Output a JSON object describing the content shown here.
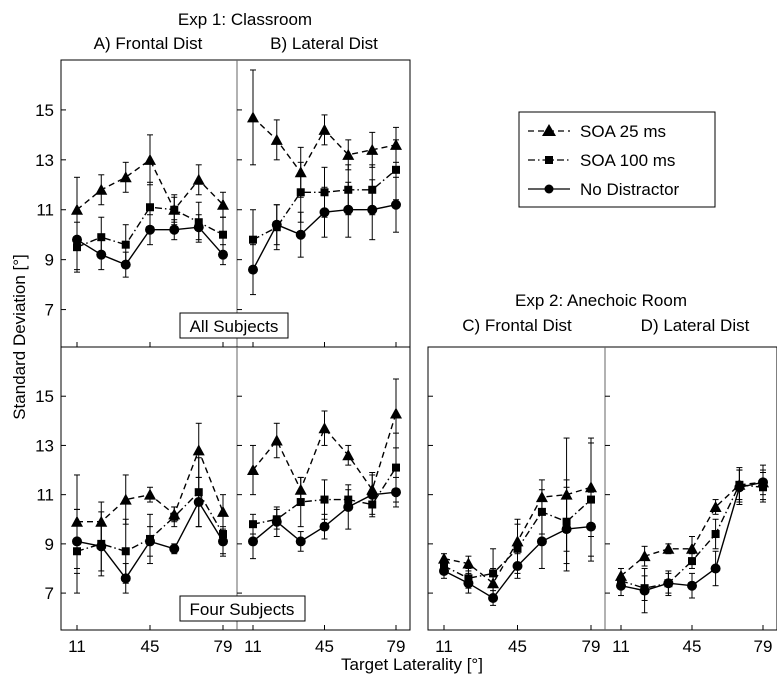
{
  "figure": {
    "exp1_title": "Exp 1: Classroom",
    "exp2_title": "Exp 2: Anechoic Room",
    "ylabel": "Standard Deviation [°]",
    "xlabel": "Target Laterality [°]",
    "panel_titles": [
      "A) Frontal Dist",
      "B) Lateral Dist",
      "C) Frontal Dist",
      "D) Lateral Dist"
    ],
    "row_labels": [
      "All Subjects",
      "Four Subjects"
    ]
  },
  "legend": {
    "placement": "right, beside top row",
    "entries": [
      {
        "label": "SOA 25 ms",
        "marker": "triangle",
        "line": "dashed"
      },
      {
        "label": "SOA 100 ms",
        "marker": "square",
        "line": "dash-dot"
      },
      {
        "label": "No Distractor",
        "marker": "circle",
        "line": "solid"
      }
    ]
  },
  "chart_data": [
    {
      "type": "line",
      "panel": "A) Frontal Dist",
      "group": "Exp 1: Classroom",
      "row": "All Subjects",
      "xticks": [
        11,
        45,
        79
      ],
      "yticks": [
        7,
        9,
        11,
        13,
        15
      ],
      "ylim": [
        5.5,
        17
      ],
      "x": [
        11,
        22.3,
        33.7,
        45,
        56.3,
        67.7,
        79
      ],
      "series": [
        {
          "name": "SOA 25 ms",
          "values": [
            11.0,
            11.8,
            12.3,
            13.0,
            11.0,
            12.2,
            11.2
          ],
          "errors": [
            1.3,
            0.6,
            0.6,
            1.0,
            0.5,
            0.6,
            0.5
          ]
        },
        {
          "name": "SOA 100 ms",
          "values": [
            9.5,
            9.9,
            9.6,
            11.1,
            11.0,
            10.5,
            10.0
          ],
          "errors": [
            1.0,
            0.8,
            0.8,
            1.0,
            0.6,
            0.8,
            0.7
          ]
        },
        {
          "name": "No Distractor",
          "values": [
            9.8,
            9.2,
            8.8,
            10.2,
            10.2,
            10.3,
            9.2
          ],
          "errors": [
            1.2,
            0.6,
            0.5,
            0.6,
            0.4,
            0.5,
            0.4
          ]
        }
      ]
    },
    {
      "type": "line",
      "panel": "B) Lateral Dist",
      "group": "Exp 1: Classroom",
      "row": "All Subjects",
      "xticks": [
        11,
        45,
        79
      ],
      "yticks": [
        7,
        9,
        11,
        13,
        15
      ],
      "ylim": [
        5.5,
        17
      ],
      "x": [
        11,
        22.3,
        33.7,
        45,
        56.3,
        67.7,
        79
      ],
      "series": [
        {
          "name": "SOA 25 ms",
          "values": [
            14.7,
            13.8,
            12.5,
            14.2,
            13.2,
            13.4,
            13.6
          ],
          "errors": [
            1.9,
            0.8,
            1.0,
            0.6,
            0.6,
            0.7,
            0.7
          ]
        },
        {
          "name": "SOA 100 ms",
          "values": [
            9.8,
            10.3,
            11.7,
            11.7,
            11.8,
            11.8,
            12.6
          ],
          "errors": [
            1.2,
            0.9,
            1.2,
            1.0,
            1.0,
            1.0,
            1.2
          ]
        },
        {
          "name": "No Distractor",
          "values": [
            8.6,
            10.4,
            10.0,
            10.9,
            11.0,
            11.0,
            11.2
          ],
          "errors": [
            1.0,
            0.8,
            0.9,
            1.0,
            1.1,
            1.2,
            1.1
          ]
        }
      ]
    },
    {
      "type": "line",
      "panel": "A) Frontal Dist",
      "group": "Exp 1: Classroom",
      "row": "Four Subjects",
      "xticks": [
        11,
        45,
        79
      ],
      "yticks": [
        7,
        9,
        11,
        13,
        15
      ],
      "ylim": [
        5.5,
        17
      ],
      "x": [
        11,
        22.3,
        33.7,
        45,
        56.3,
        67.7,
        79
      ],
      "series": [
        {
          "name": "SOA 25 ms",
          "values": [
            9.9,
            9.9,
            10.8,
            11.0,
            10.2,
            12.8,
            10.3
          ],
          "errors": [
            1.9,
            0.8,
            1.0,
            0.3,
            0.3,
            1.1,
            0.7
          ]
        },
        {
          "name": "SOA 100 ms",
          "values": [
            8.7,
            9.0,
            8.7,
            9.2,
            10.1,
            11.1,
            9.4
          ],
          "errors": [
            1.7,
            1.3,
            1.3,
            1.0,
            0.4,
            1.4,
            0.8
          ]
        },
        {
          "name": "No Distractor",
          "values": [
            9.1,
            8.9,
            7.6,
            9.1,
            8.8,
            10.7,
            9.1
          ],
          "errors": [
            1.3,
            1.0,
            0.6,
            0.6,
            0.2,
            1.0,
            0.6
          ]
        }
      ]
    },
    {
      "type": "line",
      "panel": "B) Lateral Dist",
      "group": "Exp 1: Classroom",
      "row": "Four Subjects",
      "xticks": [
        11,
        45,
        79
      ],
      "yticks": [
        7,
        9,
        11,
        13,
        15
      ],
      "ylim": [
        5.5,
        17
      ],
      "x": [
        11,
        22.3,
        33.7,
        45,
        56.3,
        67.7,
        79
      ],
      "series": [
        {
          "name": "SOA 25 ms",
          "values": [
            12.0,
            13.2,
            11.2,
            13.7,
            12.6,
            11.2,
            14.3
          ],
          "errors": [
            1.0,
            0.7,
            0.5,
            0.7,
            0.4,
            0.7,
            1.4
          ]
        },
        {
          "name": "SOA 100 ms",
          "values": [
            9.8,
            10.0,
            10.7,
            10.8,
            10.8,
            10.6,
            12.1
          ],
          "errors": [
            0.4,
            0.4,
            1.0,
            0.8,
            0.4,
            0.5,
            1.4
          ]
        },
        {
          "name": "No Distractor",
          "values": [
            9.1,
            9.9,
            9.1,
            9.7,
            10.5,
            11.0,
            11.1
          ],
          "errors": [
            0.7,
            0.6,
            0.4,
            0.5,
            0.9,
            0.8,
            0.6
          ]
        }
      ]
    },
    {
      "type": "line",
      "panel": "C) Frontal Dist",
      "group": "Exp 2: Anechoic Room",
      "row": "Four Subjects",
      "xticks": [
        11,
        45,
        79
      ],
      "yticks": [
        7,
        9,
        11,
        13,
        15
      ],
      "ylim": [
        5.5,
        17
      ],
      "x": [
        11,
        22.3,
        33.7,
        45,
        56.3,
        67.7,
        79
      ],
      "series": [
        {
          "name": "SOA 25 ms",
          "values": [
            8.4,
            8.2,
            7.4,
            9.1,
            10.9,
            11.0,
            11.3
          ],
          "errors": [
            0.2,
            0.3,
            0.6,
            0.9,
            0.7,
            2.3,
            2.0
          ]
        },
        {
          "name": "SOA 100 ms",
          "values": [
            8.1,
            7.6,
            7.8,
            8.8,
            10.3,
            9.9,
            10.8
          ],
          "errors": [
            0.3,
            0.4,
            1.0,
            1.0,
            0.9,
            1.7,
            2.3
          ]
        },
        {
          "name": "No Distractor",
          "values": [
            7.9,
            7.4,
            6.8,
            8.1,
            9.1,
            9.6,
            9.7
          ],
          "errors": [
            0.3,
            0.4,
            0.3,
            0.5,
            1.1,
            1.7,
            1.4
          ]
        }
      ]
    },
    {
      "type": "line",
      "panel": "D) Lateral Dist",
      "group": "Exp 2: Anechoic Room",
      "row": "Four Subjects",
      "xticks": [
        11,
        45,
        79
      ],
      "yticks": [
        7,
        9,
        11,
        13,
        15
      ],
      "ylim": [
        5.5,
        17
      ],
      "x": [
        11,
        22.3,
        33.7,
        45,
        56.3,
        67.7,
        79
      ],
      "series": [
        {
          "name": "SOA 25 ms",
          "values": [
            7.7,
            8.5,
            8.8,
            8.8,
            10.5,
            11.4,
            11.5
          ],
          "errors": [
            0.3,
            0.4,
            0.2,
            0.5,
            0.3,
            0.7,
            0.5
          ]
        },
        {
          "name": "SOA 100 ms",
          "values": [
            7.5,
            7.2,
            7.4,
            8.3,
            9.4,
            11.4,
            11.3
          ],
          "errors": [
            0.2,
            0.5,
            0.4,
            0.3,
            0.6,
            0.6,
            0.6
          ]
        },
        {
          "name": "No Distractor",
          "values": [
            7.3,
            7.1,
            7.4,
            7.3,
            8.0,
            11.3,
            11.5
          ],
          "errors": [
            0.4,
            0.9,
            0.5,
            0.5,
            0.7,
            0.7,
            0.7
          ]
        }
      ]
    }
  ]
}
